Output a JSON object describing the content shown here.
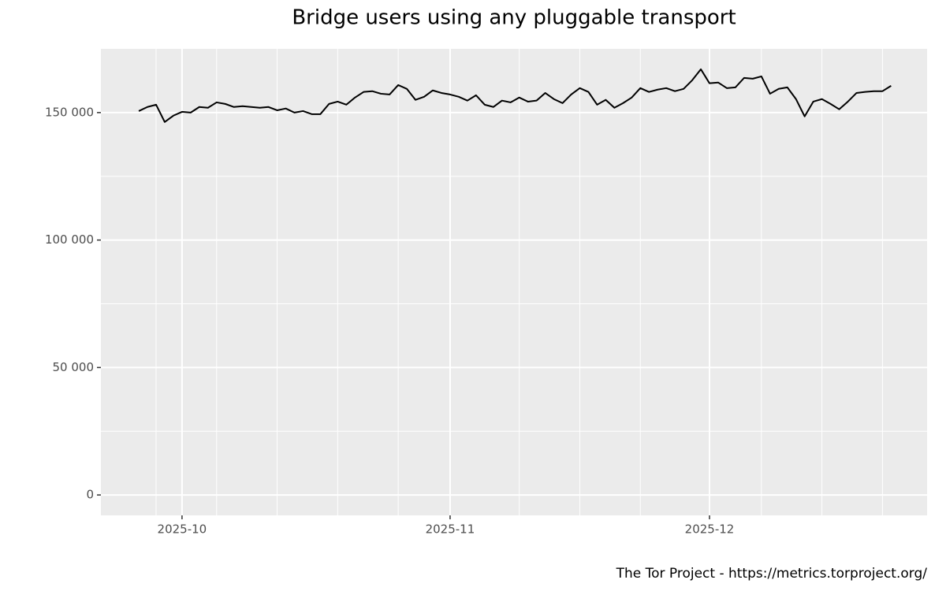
{
  "chart_data": {
    "type": "line",
    "title": "Bridge users using any pluggable transport",
    "caption": "The Tor Project - https://metrics.torproject.org/",
    "series": [
      {
        "color": "#000000",
        "values": [
          150600,
          152200,
          153100,
          146300,
          148800,
          150300,
          150000,
          152200,
          151900,
          154000,
          153400,
          152200,
          152500,
          152200,
          151900,
          152200,
          150900,
          151600,
          150000,
          150600,
          149400,
          149400,
          153400,
          154300,
          153100,
          155900,
          158100,
          158400,
          157400,
          157100,
          160800,
          159300,
          155000,
          156200,
          158700,
          157700,
          157100,
          156200,
          154700,
          156800,
          153100,
          152200,
          154700,
          154000,
          155900,
          154300,
          154700,
          157700,
          155300,
          153700,
          157100,
          159600,
          158100,
          153100,
          155000,
          151900,
          153700,
          155900,
          159600,
          158100,
          159000,
          159600,
          158400,
          159300,
          162700,
          167000,
          161500,
          161800,
          159600,
          159900,
          163600,
          163300,
          164200,
          157400,
          159300,
          159900,
          155300,
          148500,
          154300,
          155300,
          153400,
          151300,
          154300,
          157700,
          158100,
          158400,
          158400,
          160500
        ]
      }
    ],
    "xlim": [
      -4.38,
      91.16
    ],
    "xticks": [
      {
        "value": 5,
        "label": "2025-10"
      },
      {
        "value": 36,
        "label": "2025-11"
      },
      {
        "value": 66,
        "label": "2025-12"
      }
    ],
    "xminor": [
      2,
      9,
      16,
      23,
      30,
      44,
      51,
      58,
      72,
      79,
      86
    ],
    "ylim": [
      -8000,
      175000
    ],
    "yticks": [
      {
        "value": 0,
        "label": "0"
      },
      {
        "value": 50000,
        "label": "50 000"
      },
      {
        "value": 100000,
        "label": "100 000"
      },
      {
        "value": 150000,
        "label": "150 000"
      }
    ],
    "yminor": [
      25000,
      75000,
      125000
    ],
    "grid": true
  }
}
